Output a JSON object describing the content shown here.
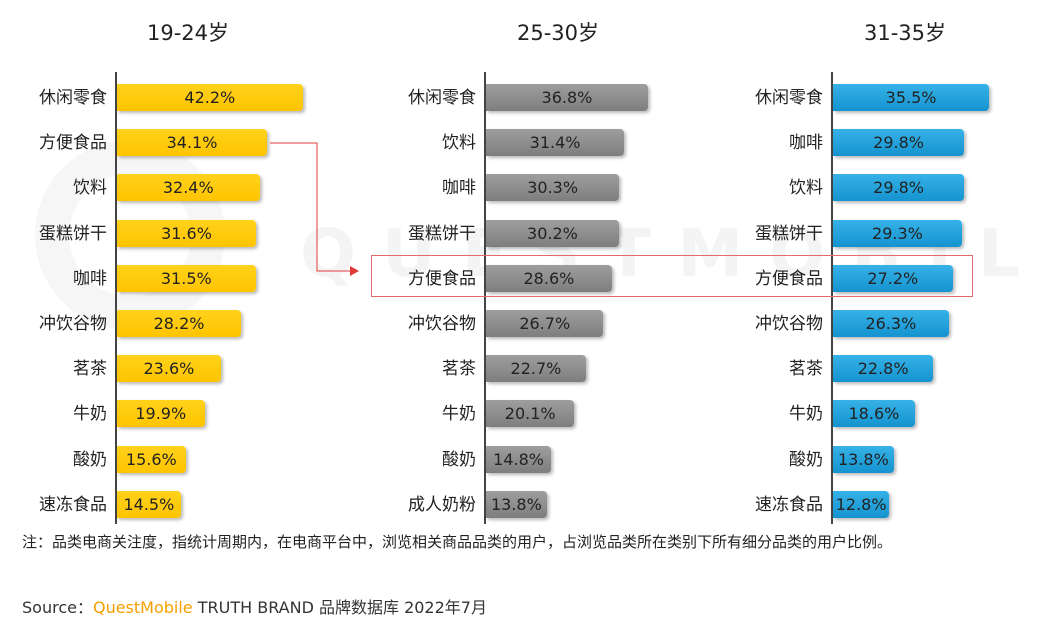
{
  "watermark": "QUESTMOBILE",
  "note": "注：品类电商关注度，指统计周期内，在电商平台中，浏览相关商品品类的用户，占浏览品类所在类别下所有细分品类的用户比例。",
  "source": {
    "prefix": "Source：",
    "brand": "QuestMobile",
    "rest": " TRUTH BRAND 品牌数据库 2022年7月"
  },
  "highlight": {
    "label": "方便食品"
  },
  "chart_data": [
    {
      "type": "bar",
      "orientation": "horizontal",
      "title": "19-24岁",
      "color": "#FFC107",
      "categories": [
        "休闲零食",
        "方便食品",
        "饮料",
        "蛋糕饼干",
        "咖啡",
        "冲饮谷物",
        "茗茶",
        "牛奶",
        "酸奶",
        "速冻食品"
      ],
      "values": [
        42.2,
        34.1,
        32.4,
        31.6,
        31.5,
        28.2,
        23.6,
        19.9,
        15.6,
        14.5
      ],
      "labels": [
        "42.2%",
        "34.1%",
        "32.4%",
        "31.6%",
        "31.5%",
        "28.2%",
        "23.6%",
        "19.9%",
        "15.6%",
        "14.5%"
      ],
      "unit": "%"
    },
    {
      "type": "bar",
      "orientation": "horizontal",
      "title": "25-30岁",
      "color": "#8C8C8C",
      "categories": [
        "休闲零食",
        "饮料",
        "咖啡",
        "蛋糕饼干",
        "方便食品",
        "冲饮谷物",
        "茗茶",
        "牛奶",
        "酸奶",
        "成人奶粉"
      ],
      "values": [
        36.8,
        31.4,
        30.3,
        30.2,
        28.6,
        26.7,
        22.7,
        20.1,
        14.8,
        13.8
      ],
      "labels": [
        "36.8%",
        "31.4%",
        "30.3%",
        "30.2%",
        "28.6%",
        "26.7%",
        "22.7%",
        "20.1%",
        "14.8%",
        "13.8%"
      ],
      "unit": "%"
    },
    {
      "type": "bar",
      "orientation": "horizontal",
      "title": "31-35岁",
      "color": "#1E9ED8",
      "categories": [
        "休闲零食",
        "咖啡",
        "饮料",
        "蛋糕饼干",
        "方便食品",
        "冲饮谷物",
        "茗茶",
        "牛奶",
        "酸奶",
        "速冻食品"
      ],
      "values": [
        35.5,
        29.8,
        29.8,
        29.3,
        27.2,
        26.3,
        22.8,
        18.6,
        13.8,
        12.8
      ],
      "labels": [
        "35.5%",
        "29.8%",
        "29.8%",
        "29.3%",
        "27.2%",
        "26.3%",
        "22.8%",
        "18.6%",
        "13.8%",
        "12.8%"
      ],
      "unit": "%"
    }
  ]
}
